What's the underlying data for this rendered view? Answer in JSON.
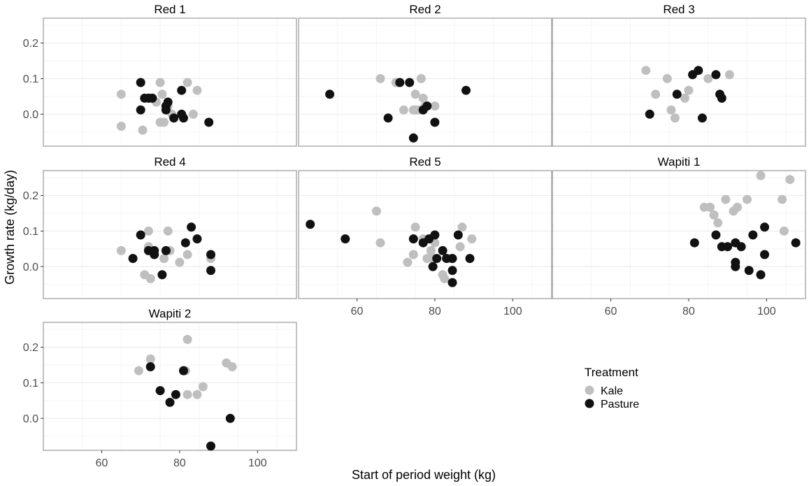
{
  "chart_data": {
    "type": "scatter",
    "title": "",
    "xlabel": "Start of period weight (kg)",
    "ylabel": "Growth rate (kg/day)",
    "xlim": [
      45,
      110
    ],
    "ylim": [
      -0.09,
      0.27
    ],
    "x_ticks": [
      60,
      80,
      100
    ],
    "x_tick_labels": [
      "60",
      "80",
      "100"
    ],
    "y_ticks": [
      0.0,
      0.1,
      0.2
    ],
    "y_tick_labels": [
      "0.0",
      "0.1",
      "0.2"
    ],
    "grid": true,
    "legend": {
      "title": "Treatment",
      "placement": "bottom-right",
      "entries": [
        {
          "label": "Kale",
          "color": "#bfbfbf"
        },
        {
          "label": "Pasture",
          "color": "#111111"
        }
      ]
    },
    "colors": {
      "Kale": "#bfbfbf",
      "Pasture": "#111111",
      "panel_border": "#9a9a9a",
      "grid": "#ebebeb"
    },
    "panels": [
      {
        "title": "Red 1",
        "series": [
          {
            "name": "Kale",
            "points": [
              [
                65,
                0.056
              ],
              [
                65,
                -0.034
              ],
              [
                70.5,
                -0.045
              ],
              [
                72.5,
                0.045
              ],
              [
                74,
                0.034
              ],
              [
                75,
                0.089
              ],
              [
                75,
                -0.023
              ],
              [
                75.5,
                0.056
              ],
              [
                76,
                -0.023
              ],
              [
                77,
                0.023
              ],
              [
                78,
                0.0
              ],
              [
                82,
                0.089
              ],
              [
                83.5,
                0.0
              ],
              [
                84.5,
                0.067
              ]
            ]
          },
          {
            "name": "Pasture",
            "points": [
              [
                70,
                0.089
              ],
              [
                70,
                0.012
              ],
              [
                71,
                0.045
              ],
              [
                72,
                0.045
              ],
              [
                73,
                0.045
              ],
              [
                76.5,
                0.012
              ],
              [
                76.5,
                0.023
              ],
              [
                77,
                0.034
              ],
              [
                78.5,
                -0.011
              ],
              [
                80.5,
                0.067
              ],
              [
                80.5,
                0.0
              ],
              [
                81,
                -0.011
              ],
              [
                87.5,
                -0.023
              ]
            ]
          }
        ]
      },
      {
        "title": "Red 2",
        "series": [
          {
            "name": "Kale",
            "points": [
              [
                66,
                0.1
              ],
              [
                70,
                0.089
              ],
              [
                72,
                0.012
              ],
              [
                74.5,
                0.012
              ],
              [
                75,
                0.012
              ],
              [
                75,
                0.056
              ],
              [
                76,
                0.012
              ],
              [
                76.5,
                0.1
              ],
              [
                77,
                0.045
              ],
              [
                77.5,
                0.023
              ],
              [
                80,
                0.023
              ]
            ]
          },
          {
            "name": "Pasture",
            "points": [
              [
                53,
                0.056
              ],
              [
                68,
                -0.011
              ],
              [
                71,
                0.089
              ],
              [
                73.5,
                0.089
              ],
              [
                74.5,
                -0.067
              ],
              [
                77,
                0.012
              ],
              [
                78,
                0.023
              ],
              [
                80,
                -0.023
              ],
              [
                88,
                0.067
              ]
            ]
          }
        ]
      },
      {
        "title": "Red 3",
        "series": [
          {
            "name": "Kale",
            "points": [
              [
                69,
                0.123
              ],
              [
                71.5,
                0.056
              ],
              [
                74.5,
                0.1
              ],
              [
                75.5,
                0.012
              ],
              [
                76.5,
                -0.011
              ],
              [
                79,
                0.045
              ],
              [
                80,
                0.067
              ],
              [
                85,
                0.1
              ],
              [
                90.5,
                0.111
              ]
            ]
          },
          {
            "name": "Pasture",
            "points": [
              [
                70,
                0.0
              ],
              [
                77,
                0.056
              ],
              [
                81,
                0.111
              ],
              [
                82.5,
                0.123
              ],
              [
                83.5,
                -0.011
              ],
              [
                87,
                0.111
              ],
              [
                88,
                0.056
              ],
              [
                88.5,
                0.045
              ]
            ]
          }
        ]
      },
      {
        "title": "Red 4",
        "series": [
          {
            "name": "Kale",
            "points": [
              [
                65,
                0.045
              ],
              [
                71,
                -0.023
              ],
              [
                72,
                0.1
              ],
              [
                72,
                0.056
              ],
              [
                72.5,
                -0.034
              ],
              [
                73,
                0.045
              ],
              [
                76,
                0.023
              ],
              [
                77,
                0.1
              ],
              [
                77.5,
                0.045
              ],
              [
                80,
                0.012
              ],
              [
                82,
                0.034
              ],
              [
                88,
                0.023
              ]
            ]
          },
          {
            "name": "Pasture",
            "points": [
              [
                68,
                0.023
              ],
              [
                70,
                0.089
              ],
              [
                72,
                0.045
              ],
              [
                73.5,
                0.045
              ],
              [
                73.5,
                0.034
              ],
              [
                75.5,
                -0.023
              ],
              [
                76.5,
                0.045
              ],
              [
                81.5,
                0.067
              ],
              [
                83,
                0.111
              ],
              [
                84.5,
                0.078
              ],
              [
                88,
                0.034
              ],
              [
                88,
                -0.011
              ]
            ]
          }
        ]
      },
      {
        "title": "Red 5",
        "series": [
          {
            "name": "Kale",
            "points": [
              [
                65,
                0.156
              ],
              [
                66,
                0.067
              ],
              [
                73,
                0.012
              ],
              [
                74.5,
                0.034
              ],
              [
                75,
                0.111
              ],
              [
                77,
                0.078
              ],
              [
                78,
                0.023
              ],
              [
                79,
                0.045
              ],
              [
                79.5,
                0.023
              ],
              [
                82,
                -0.023
              ],
              [
                82.5,
                -0.034
              ],
              [
                84,
                0.023
              ],
              [
                86.5,
                0.056
              ],
              [
                87,
                0.111
              ],
              [
                89.5,
                0.078
              ],
              [
                80,
                0.067
              ]
            ]
          },
          {
            "name": "Pasture",
            "points": [
              [
                48,
                0.119
              ],
              [
                57,
                0.078
              ],
              [
                74.5,
                0.078
              ],
              [
                77,
                0.067
              ],
              [
                78.5,
                0.078
              ],
              [
                79.5,
                0.0
              ],
              [
                80,
                0.089
              ],
              [
                80.5,
                0.023
              ],
              [
                82,
                0.045
              ],
              [
                83,
                0.023
              ],
              [
                84.5,
                0.023
              ],
              [
                84.5,
                -0.011
              ],
              [
                84.5,
                -0.045
              ],
              [
                86,
                0.089
              ],
              [
                89,
                0.023
              ]
            ]
          }
        ]
      },
      {
        "title": "Wapiti 1",
        "series": [
          {
            "name": "Kale",
            "points": [
              [
                84,
                0.167
              ],
              [
                85.5,
                0.167
              ],
              [
                86.5,
                0.145
              ],
              [
                87.5,
                0.123
              ],
              [
                89.5,
                0.189
              ],
              [
                91.5,
                0.156
              ],
              [
                92.5,
                0.167
              ],
              [
                95,
                0.189
              ],
              [
                98.5,
                0.256
              ],
              [
                104,
                0.189
              ],
              [
                104.5,
                0.1
              ],
              [
                106,
                0.245
              ]
            ]
          },
          {
            "name": "Pasture",
            "points": [
              [
                81.5,
                0.067
              ],
              [
                87,
                0.089
              ],
              [
                88.5,
                0.056
              ],
              [
                90,
                0.056
              ],
              [
                92,
                0.0
              ],
              [
                92,
                0.012
              ],
              [
                92,
                0.067
              ],
              [
                93.5,
                0.056
              ],
              [
                95.5,
                -0.011
              ],
              [
                96.5,
                0.089
              ],
              [
                98.5,
                -0.023
              ],
              [
                99.5,
                0.111
              ],
              [
                99.5,
                0.034
              ],
              [
                107.5,
                0.067
              ]
            ]
          }
        ]
      },
      {
        "title": "Wapiti 2",
        "series": [
          {
            "name": "Kale",
            "points": [
              [
                69.5,
                0.134
              ],
              [
                72.5,
                0.167
              ],
              [
                81.5,
                0.134
              ],
              [
                82,
                0.222
              ],
              [
                82,
                0.067
              ],
              [
                84.5,
                0.067
              ],
              [
                86,
                0.089
              ],
              [
                92,
                0.156
              ],
              [
                93.5,
                0.145
              ]
            ]
          },
          {
            "name": "Pasture",
            "points": [
              [
                72.5,
                0.145
              ],
              [
                75,
                0.078
              ],
              [
                77.5,
                0.045
              ],
              [
                79,
                0.067
              ],
              [
                81,
                0.134
              ],
              [
                88,
                -0.078
              ],
              [
                93,
                0.0
              ]
            ]
          }
        ]
      }
    ]
  }
}
